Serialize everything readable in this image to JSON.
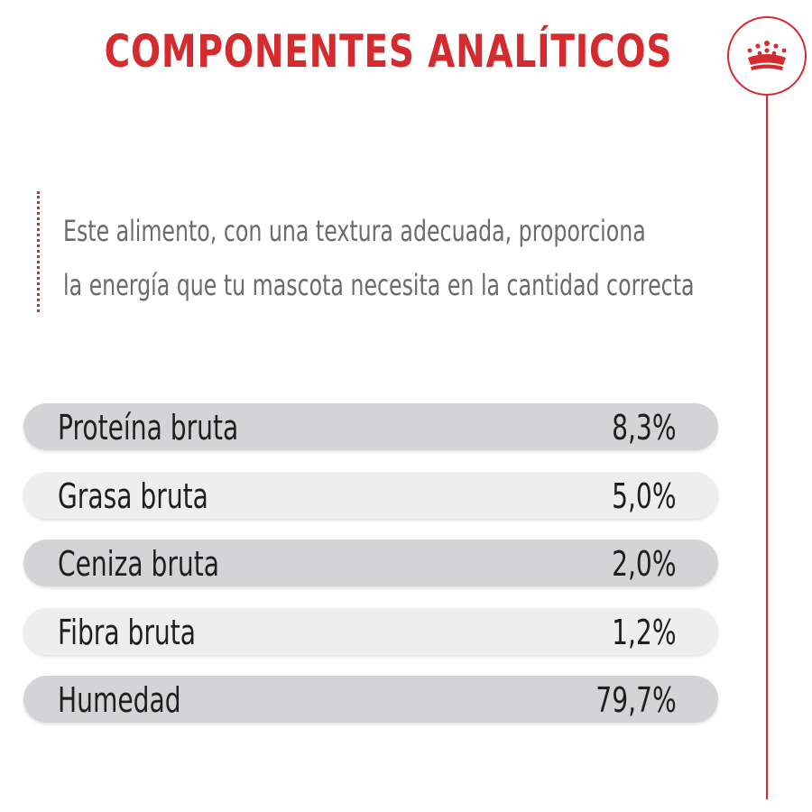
{
  "title": "COMPONENTES ANALÍTICOS",
  "brand": {
    "icon": "crown-icon",
    "accent_color": "#d52b2f"
  },
  "intro": {
    "line1": "Este alimento, con una textura adecuada, proporciona",
    "line2": "la energía que tu mascota necesita en la cantidad correcta"
  },
  "components": [
    {
      "label": "Proteína bruta",
      "value": "8,3%"
    },
    {
      "label": "Grasa bruta",
      "value": "5,0%"
    },
    {
      "label": "Ceniza bruta",
      "value": "2,0%"
    },
    {
      "label": "Fibra bruta",
      "value": "1,2%"
    },
    {
      "label": "Humedad",
      "value": "79,7%"
    }
  ]
}
